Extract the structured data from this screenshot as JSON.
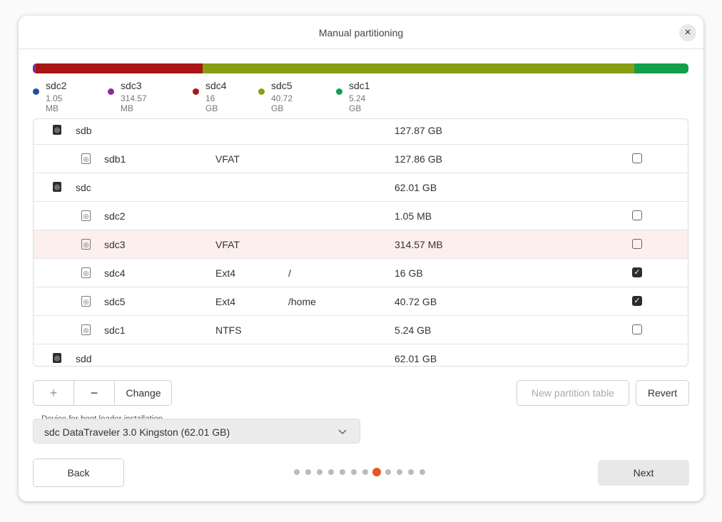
{
  "header": {
    "title": "Manual partitioning"
  },
  "legend": [
    {
      "name": "sdc2",
      "size": "1.05 MB"
    },
    {
      "name": "sdc3",
      "size": "314.57 MB"
    },
    {
      "name": "sdc4",
      "size": "16 GB"
    },
    {
      "name": "sdc5",
      "size": "40.72 GB"
    },
    {
      "name": "sdc1",
      "size": "5.24 GB"
    }
  ],
  "table": {
    "selected_row": 4,
    "rows": [
      {
        "device": "sdb",
        "size": "127.87 GB"
      },
      {
        "device": "sdb1",
        "type": "VFAT",
        "size": "127.86 GB",
        "checked": false
      },
      {
        "device": "sdc",
        "size": "62.01 GB"
      },
      {
        "device": "sdc2",
        "size": "1.05 MB",
        "checked": false
      },
      {
        "device": "sdc3",
        "type": "VFAT",
        "size": "314.57 MB",
        "checked": false
      },
      {
        "device": "sdc4",
        "type": "Ext4",
        "mount": "/",
        "size": "16 GB",
        "checked": true
      },
      {
        "device": "sdc5",
        "type": "Ext4",
        "mount": "/home",
        "size": "40.72 GB",
        "checked": true
      },
      {
        "device": "sdc1",
        "type": "NTFS",
        "size": "5.24 GB",
        "checked": false
      },
      {
        "device": "sdd",
        "size": "62.01 GB"
      }
    ]
  },
  "toolbar": {
    "add": "+",
    "remove": "−",
    "change": "Change",
    "new_table": "New partition table",
    "revert": "Revert"
  },
  "bootloader": {
    "label": "Device for boot loader installation",
    "value": "sdc DataTraveler 3.0 Kingston (62.01 GB)"
  },
  "footer": {
    "back": "Back",
    "next": "Next",
    "pager": {
      "count": 12,
      "current": 7
    }
  }
}
